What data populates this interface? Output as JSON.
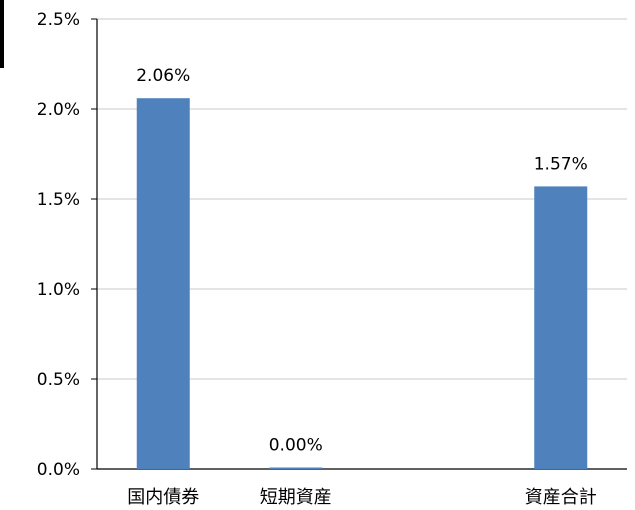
{
  "chart_data": {
    "type": "bar",
    "title": "",
    "xlabel": "",
    "ylabel": "",
    "categories": [
      "国内債券",
      "短期資産",
      "",
      "資産合計"
    ],
    "values": [
      2.06,
      0.0,
      null,
      1.57
    ],
    "data_labels": [
      "2.06%",
      "0.00%",
      "",
      "1.57%"
    ],
    "ylim": [
      0,
      2.5
    ],
    "yticks": [
      0,
      0.5,
      1.0,
      1.5,
      2.0,
      2.5
    ],
    "ytick_labels": [
      "0.0%",
      "0.5%",
      "1.0%",
      "1.5%",
      "2.0%",
      "2.5%"
    ],
    "grid": true,
    "legend": "none",
    "colors": {
      "bar": "#4f81bd",
      "grid": "#c8c8c8",
      "axis": "#000000"
    }
  }
}
